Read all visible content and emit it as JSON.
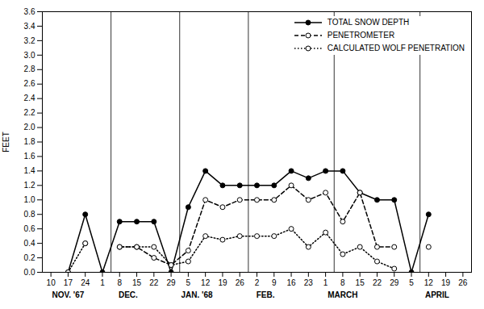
{
  "chart_data": {
    "type": "line",
    "categories": [
      "10",
      "17",
      "24",
      "1",
      "8",
      "15",
      "22",
      "29",
      "5",
      "12",
      "19",
      "26",
      "2",
      "9",
      "16",
      "23",
      "1",
      "8",
      "15",
      "22",
      "29",
      "5",
      "12",
      "19",
      "26"
    ],
    "series": [
      {
        "name": "TOTAL SNOW DEPTH",
        "color": "black",
        "line_style": "solid",
        "marker": "filled circle",
        "values": [
          null,
          0.0,
          0.8,
          0.0,
          0.7,
          0.7,
          0.7,
          0.0,
          0.9,
          1.4,
          1.2,
          1.2,
          1.2,
          1.2,
          1.4,
          1.3,
          1.4,
          1.4,
          1.1,
          1.0,
          1.0,
          0.0,
          0.8,
          null,
          null
        ]
      },
      {
        "name": "PENETROMETER",
        "color": "black",
        "line_style": "dashed",
        "marker": "open circle",
        "values": [
          null,
          null,
          0.4,
          null,
          0.35,
          0.35,
          0.2,
          0.1,
          0.3,
          1.0,
          0.9,
          1.0,
          1.0,
          1.0,
          1.2,
          1.0,
          1.1,
          0.7,
          1.1,
          0.35,
          0.35,
          null,
          null,
          null,
          null
        ]
      },
      {
        "name": "CALCULATED WOLF PENETRATION",
        "color": "black",
        "line_style": "dotted",
        "marker": "open circle",
        "values": [
          null,
          0.0,
          0.4,
          null,
          0.35,
          0.35,
          0.35,
          0.1,
          0.15,
          0.5,
          0.45,
          0.5,
          0.5,
          0.5,
          0.6,
          0.35,
          0.55,
          0.25,
          0.35,
          0.15,
          0.05,
          null,
          0.35,
          null,
          null
        ]
      }
    ],
    "ylabel": "FEET",
    "ylim": [
      0,
      3.6
    ],
    "yticks": [
      {
        "value": 0,
        "label": "0.0"
      },
      0.2,
      0.4,
      0.6,
      0.8,
      {
        "value": 1.0,
        "label": "1.0"
      },
      1.2,
      1.4,
      1.6,
      1.8,
      {
        "value": 2.0,
        "label": "2.0"
      },
      2.2,
      2.4,
      2.6,
      2.8,
      {
        "value": 3.0,
        "label": "3.0"
      },
      3.2,
      3.4,
      3.6
    ],
    "annotations": [
      {
        "text": "NOV. '67",
        "x": 1.0
      },
      {
        "text": "DEC.",
        "x": 4.5
      },
      {
        "text": "JAN. '68",
        "x": 8.5
      },
      {
        "text": "FEB.",
        "x": 12.5
      },
      {
        "text": "MARCH",
        "x": 17.0
      },
      {
        "text": "APRIL",
        "x": 22.5
      }
    ],
    "dividers": [
      3.5,
      7.5,
      11.5,
      16.5,
      21.5
    ],
    "legend": "upper right",
    "grid": false
  }
}
